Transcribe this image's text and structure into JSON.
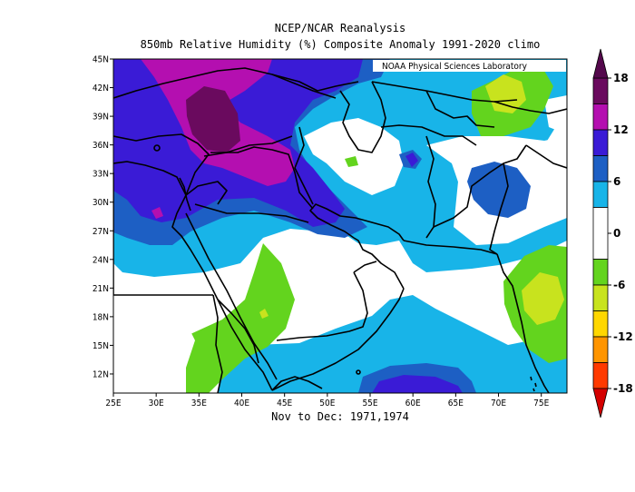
{
  "header": {
    "title_line1": "NCEP/NCAR Reanalysis",
    "title_line2": "850mb Relative Humidity (%) Composite Anomaly 1991-2020 climo"
  },
  "footer": {
    "caption": "Nov to Dec: 1971,1974"
  },
  "credit": "NOAA Physical Sciences Laboratory",
  "chart_data": {
    "type": "heatmap",
    "variable": "850mb Relative Humidity (%) Composite Anomaly",
    "lon_range": [
      25,
      78
    ],
    "lat_range": [
      10,
      45
    ],
    "x_ticks": [
      "25E",
      "30E",
      "35E",
      "40E",
      "45E",
      "50E",
      "55E",
      "60E",
      "65E",
      "70E",
      "75E"
    ],
    "y_ticks": [
      "12N",
      "15N",
      "18N",
      "21N",
      "24N",
      "27N",
      "30N",
      "33N",
      "36N",
      "39N",
      "42N",
      "45N"
    ],
    "colorbar": {
      "labels": [
        "18",
        "12",
        "6",
        "0",
        "-6",
        "-12",
        "-18"
      ],
      "bins": [
        {
          "range": [
            15,
            18
          ],
          "color": "#6a0a5e"
        },
        {
          "range": [
            12,
            15
          ],
          "color": "#b40fb0"
        },
        {
          "range": [
            9,
            12
          ],
          "color": "#3a1bd6"
        },
        {
          "range": [
            6,
            9
          ],
          "color": "#1d5fc4"
        },
        {
          "range": [
            3,
            6
          ],
          "color": "#18b4e8"
        },
        {
          "range": [
            -3,
            3
          ],
          "color": "#ffffff"
        },
        {
          "range": [
            -6,
            -3
          ],
          "color": "#63d41e"
        },
        {
          "range": [
            -9,
            -6
          ],
          "color": "#c8e31e"
        },
        {
          "range": [
            -12,
            -9
          ],
          "color": "#ffd700"
        },
        {
          "range": [
            -15,
            -12
          ],
          "color": "#ff9500"
        },
        {
          "range": [
            -18,
            -15
          ],
          "color": "#ff3a00"
        }
      ],
      "arrow_top": "#54084c",
      "arrow_bottom": "#d40000"
    },
    "regions": [
      {
        "name": "positive-anomaly-max",
        "value": 18,
        "lon": 37,
        "lat": 38.5
      },
      {
        "name": "negative-anomaly-min",
        "value": -9,
        "lon": 75,
        "lat": 22
      }
    ]
  }
}
